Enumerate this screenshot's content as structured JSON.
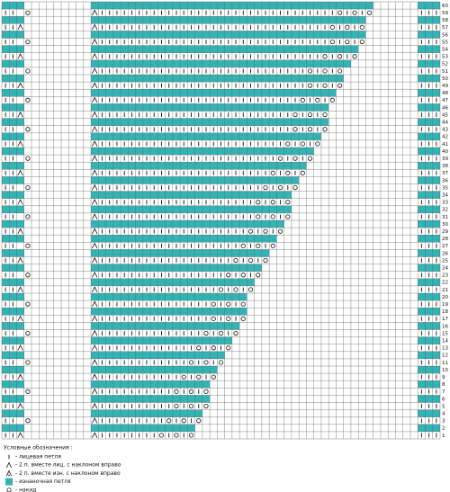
{
  "rows": [
    {
      "label": 60,
      "left": "ppp",
      "main": "pppppppppppppppppppppppppppppppppppppp",
      "right": "ppp"
    },
    {
      "label": 59,
      "left": "kk.o",
      "main": "rkkkkkkkkkkkkkkkkkkkkkkkkkkkkkkkkokoko",
      "right": "kkk"
    },
    {
      "label": 58,
      "left": "ppp",
      "main": "ppppppppppppppppppppppppppppppppppppp",
      "right": "ppp"
    },
    {
      "label": 57,
      "left": "kkr",
      "main": "rkkkkkkkkkkkkkkkkkkkkkkkkkkkkkkkokoko",
      "right": "kkk"
    },
    {
      "label": 56,
      "left": "ppp",
      "main": "ppppppppppppppppppppppppppppppppppppp",
      "right": "ppp"
    },
    {
      "label": 55,
      "left": "kk.o",
      "main": "rkkkkkkkkkkkkkkkkkkkkkkkkkkkkkkkokoko",
      "right": "kkk"
    },
    {
      "label": 54,
      "left": "ppp",
      "main": "pppppppppppppppppppppppppppppppppppp",
      "right": "ppp"
    },
    {
      "label": 53,
      "left": "kkr",
      "main": "rkkkkkkkkkkkkkkkkkkkkkkkkkkkkkkokoko",
      "right": "kkk"
    },
    {
      "label": 52,
      "left": "ppp",
      "main": "ppppppppppppppppppppppppppppppppppp",
      "right": "ppp"
    },
    {
      "label": 51,
      "left": "kk.o",
      "main": "rkkkkkkkkkkkkkkkkkkkkkkkkkkkkokoko",
      "right": "kkk"
    },
    {
      "label": 50,
      "left": "ppp",
      "main": "pppppppppppppppppppppppppppppppppp",
      "right": "ppp"
    },
    {
      "label": 49,
      "left": "kkr",
      "main": "rkkkkkkkkkkkkkkkkkkkkkkkkkkkkokoko",
      "right": "kkk"
    },
    {
      "label": 48,
      "left": "ppp",
      "main": "ppppppppppppppppppppppppppppppppp",
      "right": "ppp"
    },
    {
      "label": 47,
      "left": "kk.o",
      "main": "rkkkkkkkkkkkkkkkkkkkkkkkkkkkokoko",
      "right": "kkk"
    },
    {
      "label": 46,
      "left": "ppp",
      "main": "pppppppppppppppppppppppppppppppp",
      "right": "ppp"
    },
    {
      "label": 45,
      "left": "kkr",
      "main": "rkkkkkkkkkkkkkkkkkkkkkkkkkkokoko",
      "right": "kkk"
    },
    {
      "label": 44,
      "left": "ppp",
      "main": "pppppppppppppppppppppppppppppppp",
      "right": "ppp"
    },
    {
      "label": 43,
      "left": "kk.o",
      "main": "rkkkkkkkkkkkkkkkkkkkkkkkkkkokoko",
      "right": "kkk"
    },
    {
      "label": 42,
      "left": "ppp",
      "main": "ppppppppppppppppppppppppppppppp",
      "right": "ppp"
    },
    {
      "label": 41,
      "left": "kkr",
      "main": "rkkkkkkkkkkkkkkkkkkkkkkkkkokoko",
      "right": "kkk"
    },
    {
      "label": 40,
      "left": "ppp",
      "main": "pppppppppppppppppppppppppppppp",
      "right": "ppp"
    },
    {
      "label": 39,
      "left": "kk.o",
      "main": "rkkkkkkkkkkkkkkkkkkkkkkkkokoko",
      "right": "kkk"
    },
    {
      "label": 38,
      "left": "ppp",
      "main": "ppppppppppppppppppppppppppppp",
      "right": "ppp"
    },
    {
      "label": 37,
      "left": "kkr",
      "main": "rkkkkkkkkkkkkkkkkkkkkkkkokoko",
      "right": "kkk"
    },
    {
      "label": 36,
      "left": "ppp",
      "main": "pppppppppppppppppppppppppppp",
      "right": "ppp"
    },
    {
      "label": 35,
      "left": "kk.o",
      "main": "rkkkkkkkkkkkkkkkkkkkkkkokoko",
      "right": "kkk"
    },
    {
      "label": 34,
      "left": "ppp",
      "main": "ppppppppppppppppppppppppppp",
      "right": "ppp"
    },
    {
      "label": 33,
      "left": "kkr",
      "main": "rkkkkkkkkkkkkkkkkkkkkkokoko",
      "right": "kkk"
    },
    {
      "label": 32,
      "left": "ppp",
      "main": "ppppppppppppppppppppppppppp",
      "right": "ppp"
    },
    {
      "label": 31,
      "left": "kk.o",
      "main": "rkkkkkkkkkkkkkkkkkkkkkokoko",
      "right": "kkk"
    },
    {
      "label": 30,
      "left": "ppp",
      "main": "pppppppppppppppppppppppppp",
      "right": "ppp"
    },
    {
      "label": 29,
      "left": "kkr",
      "main": "rkkkkkkkkkkkkkkkkkkkkokoko",
      "right": "kkk"
    },
    {
      "label": 28,
      "left": "ppp",
      "main": "ppppppppppppppppppppppppp",
      "right": "ppp"
    },
    {
      "label": 27,
      "left": "kk.o",
      "main": "rkkkkkkkkkkkkkkkkkkkokoko",
      "right": "kkk"
    },
    {
      "label": 26,
      "left": "ppp",
      "main": "pppppppppppppppppppppppp",
      "right": "ppp"
    },
    {
      "label": 25,
      "left": "kkr",
      "main": "rkkkkkkkkkkkkkkkkkkokoko",
      "right": "kkk"
    },
    {
      "label": 24,
      "left": "ppp",
      "main": "ppppppppppppppppppppppp",
      "right": "ppp"
    },
    {
      "label": 23,
      "left": "kk.o",
      "main": "rkkkkkkkkkkkkkkkkkokoko",
      "right": "kkk"
    },
    {
      "label": 22,
      "left": "ppp",
      "main": "pppppppppppppppppppppp",
      "right": "ppp"
    },
    {
      "label": 21,
      "left": "kkr",
      "main": "rkkkkkkkkkkkkkkkkokoko",
      "right": "kkk"
    },
    {
      "label": 20,
      "left": "ppp",
      "main": "ppppppppppppppppppppp",
      "right": "ppp"
    },
    {
      "label": 19,
      "left": "kk.o",
      "main": "rkkkkkkkkkkkkkkkokoko",
      "right": "kkk"
    },
    {
      "label": 18,
      "left": "ppp",
      "main": "ppppppppppppppppppppp",
      "right": "ppp"
    },
    {
      "label": 17,
      "left": "kkr",
      "main": "rkkkkkkkkkkkkkkkokoko",
      "right": "kkk"
    },
    {
      "label": 16,
      "left": "ppp",
      "main": "pppppppppppppppppppp",
      "right": "ppp"
    },
    {
      "label": 15,
      "left": "kk.o",
      "main": "rkkkkkkkkkkkkkkokoko",
      "right": "kkk"
    },
    {
      "label": 14,
      "left": "ppp",
      "main": "ppppppppppppppppppp",
      "right": "ppp"
    },
    {
      "label": 13,
      "left": "kkr",
      "main": "rkkkkkkkkkkkkkokoko",
      "right": "kkk"
    },
    {
      "label": 12,
      "left": "ppp",
      "main": "pppppppppppppppppp",
      "right": "ppp"
    },
    {
      "label": 11,
      "left": "kk.o",
      "main": "rkkkkkkkkkkkkokoko",
      "right": "kkk"
    },
    {
      "label": 10,
      "left": "ppp",
      "main": "ppppppppppppppppp",
      "right": "ppp"
    },
    {
      "label": 9,
      "left": "kkr",
      "main": "rkkkkkkkkkkkokoko",
      "right": "kkk"
    },
    {
      "label": 8,
      "left": "ppp",
      "main": "pppppppppppppppp",
      "right": "ppp"
    },
    {
      "label": 7,
      "left": "kk.o",
      "main": "rkkkkkkkkkkokoko",
      "right": "kkk"
    },
    {
      "label": 6,
      "left": "ppp",
      "main": "pppppppppppppppp",
      "right": "ppp"
    },
    {
      "label": 5,
      "left": "kkr",
      "main": "rkkkkkkkkkkokoko",
      "right": "kkk"
    },
    {
      "label": 4,
      "left": "ppp",
      "main": "ppppppppppppppp",
      "right": "ppp"
    },
    {
      "label": 3,
      "left": "kk.o",
      "main": "rkkkkkkkkkokoko",
      "right": "kkk"
    },
    {
      "label": 2,
      "left": "ppp",
      "main": "pppppppppppppp",
      "right": "ppp"
    },
    {
      "label": 1,
      "left": "kkr",
      "main": "rkkkkkkkkokoko",
      "right": "kkk"
    }
  ],
  "legend": {
    "title": "Условные обозначения :",
    "items": [
      {
        "symbol": "k",
        "text": "- лицевая петля"
      },
      {
        "symbol": "r",
        "text": "- 2 п. вместе лиц. с наклоном вправо"
      },
      {
        "symbol": "s",
        "text": "- 2 п. вместе изн. с наклоном вправо"
      },
      {
        "symbol": "p",
        "text": "- изнаночная петля"
      },
      {
        "symbol": "o",
        "text": "- накид"
      }
    ]
  }
}
